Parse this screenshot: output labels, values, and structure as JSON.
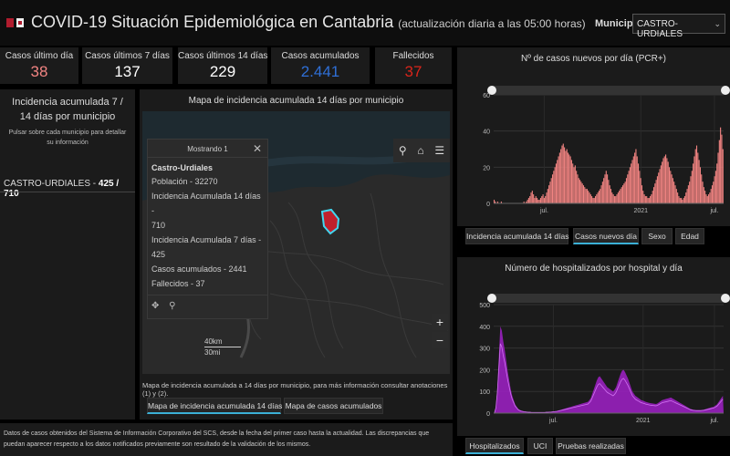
{
  "header": {
    "title": "COVID-19 Situación Epidemiológica en Cantabria",
    "subtitle": "(actualización diaria a las 05:00 horas)",
    "municipio_label": "Municipio",
    "municipio_value": "CASTRO-URDIALES"
  },
  "cards": [
    {
      "label": "Casos último día",
      "value": "38",
      "color": "#f28482"
    },
    {
      "label": "Casos últimos 7 días",
      "value": "137",
      "color": "#ffffff"
    },
    {
      "label": "Casos últimos 14 días",
      "value": "229",
      "color": "#ffffff"
    },
    {
      "label": "Casos acumulados",
      "value": "2.441",
      "color": "#2f6fd6"
    },
    {
      "label": "Fallecidos",
      "value": "37",
      "color": "#d9251b"
    }
  ],
  "left_panel": {
    "title": "Incidencia acumulada 7 / 14 días por municipio",
    "hint": "Pulsar sobre cada municipio para detallar su información",
    "municipio": "CASTRO-URDIALES - ",
    "value": "425 / 710"
  },
  "map": {
    "title": "Mapa de incidencia acumulada 14 días por municipio",
    "popup_header": "Mostrando 1",
    "popup_name": "Castro-Urdiales",
    "popup_lines": [
      "Población - 32270",
      "Incidencia Acumulada 14 días -",
      "710",
      "Incidencia Acumulada 7 días -",
      "425",
      "Casos acumulados - 2441",
      "Fallecidos - 37"
    ],
    "scale_km": "40km",
    "scale_mi": "30mi",
    "caption": "Mapa de incidencia acumulada a 14 días por municipio, para más información consultar anotaciones (1) y (2).",
    "tabs": [
      "Mapa de incidencia acumulada 14 días",
      "Mapa de casos acumulados"
    ]
  },
  "footer": {
    "text": "Datos de casos obtenidos del Sistema de Información Corporativo del SCS, desde la fecha del primer caso hasta la actualidad. Las discrepancias que puedan aparecer respecto a los datos notificados previamente son resultado de la validación de los mismos."
  },
  "charts_tabs": {
    "top": [
      "Incidencia acumulada 14 días",
      "Casos nuevos día",
      "Sexo",
      "Edad"
    ],
    "bottom": [
      "Hospitalizados",
      "UCI",
      "Pruebas realizadas"
    ]
  },
  "chart_data": [
    {
      "type": "bar",
      "title": "Nº de casos nuevos por día (PCR+)",
      "color": "#f28482",
      "ylim": [
        0,
        60
      ],
      "yticks": [
        "0",
        "20",
        "40",
        "60"
      ],
      "xticks": [
        "jul.",
        "2021",
        "jul."
      ],
      "xtick_positions": [
        0.22,
        0.64,
        0.96
      ],
      "values": [
        2,
        1,
        0,
        1,
        0,
        0,
        1,
        0,
        0,
        0,
        0,
        0,
        0,
        0,
        0,
        0,
        0,
        0,
        0,
        0,
        0,
        0,
        0,
        0,
        0,
        1,
        0,
        1,
        2,
        3,
        4,
        6,
        7,
        5,
        3,
        4,
        3,
        2,
        2,
        3,
        4,
        5,
        3,
        4,
        6,
        8,
        10,
        12,
        14,
        16,
        18,
        20,
        22,
        24,
        26,
        28,
        30,
        32,
        33,
        31,
        29,
        30,
        28,
        27,
        26,
        24,
        22,
        20,
        21,
        18,
        16,
        14,
        13,
        12,
        11,
        10,
        9,
        8,
        8,
        7,
        6,
        5,
        4,
        3,
        3,
        4,
        5,
        6,
        7,
        8,
        10,
        12,
        14,
        16,
        18,
        16,
        13,
        10,
        8,
        6,
        5,
        4,
        4,
        5,
        6,
        7,
        8,
        9,
        10,
        11,
        12,
        14,
        16,
        18,
        20,
        22,
        24,
        26,
        28,
        30,
        26,
        22,
        18,
        14,
        10,
        7,
        5,
        4,
        4,
        3,
        3,
        4,
        5,
        7,
        9,
        11,
        13,
        15,
        17,
        19,
        21,
        23,
        25,
        26,
        27,
        25,
        23,
        20,
        18,
        16,
        14,
        12,
        10,
        8,
        6,
        4,
        3,
        3,
        2,
        3,
        4,
        6,
        8,
        10,
        12,
        15,
        18,
        22,
        26,
        30,
        32,
        28,
        24,
        20,
        16,
        12,
        9,
        7,
        5,
        4,
        5,
        6,
        8,
        10,
        12,
        15,
        18,
        22,
        28,
        35,
        42,
        38,
        30
      ]
    },
    {
      "type": "area",
      "title": "Número de hospitalizados por hospital y día",
      "color": "#a020c8",
      "ylim": [
        0,
        500
      ],
      "yticks": [
        "0",
        "100",
        "200",
        "300",
        "400",
        "500"
      ],
      "xticks": [
        "jul.",
        "2021",
        "jul."
      ],
      "xtick_positions": [
        0.26,
        0.65,
        0.96
      ],
      "values": [
        0,
        30,
        120,
        260,
        400,
        380,
        330,
        290,
        240,
        190,
        150,
        110,
        80,
        60,
        40,
        30,
        20,
        15,
        12,
        10,
        8,
        7,
        6,
        5,
        5,
        4,
        4,
        4,
        4,
        4,
        4,
        4,
        4,
        4,
        4,
        5,
        5,
        6,
        6,
        7,
        8,
        9,
        10,
        12,
        14,
        16,
        18,
        20,
        22,
        24,
        26,
        28,
        30,
        32,
        34,
        36,
        38,
        40,
        42,
        44,
        46,
        48,
        50,
        52,
        60,
        70,
        90,
        110,
        130,
        150,
        165,
        170,
        160,
        150,
        140,
        130,
        120,
        115,
        110,
        105,
        100,
        108,
        120,
        140,
        160,
        180,
        195,
        200,
        190,
        175,
        160,
        140,
        120,
        100,
        90,
        80,
        75,
        70,
        65,
        60,
        58,
        55,
        52,
        50,
        48,
        46,
        45,
        44,
        43,
        42,
        45,
        50,
        55,
        60,
        62,
        64,
        66,
        68,
        70,
        72,
        68,
        64,
        60,
        56,
        52,
        48,
        44,
        40,
        36,
        32,
        28,
        24,
        20,
        18,
        16,
        15,
        14,
        14,
        14,
        14,
        15,
        16,
        18,
        20,
        22,
        24,
        26,
        28,
        30,
        35,
        40,
        50,
        60,
        70,
        80
      ]
    }
  ]
}
